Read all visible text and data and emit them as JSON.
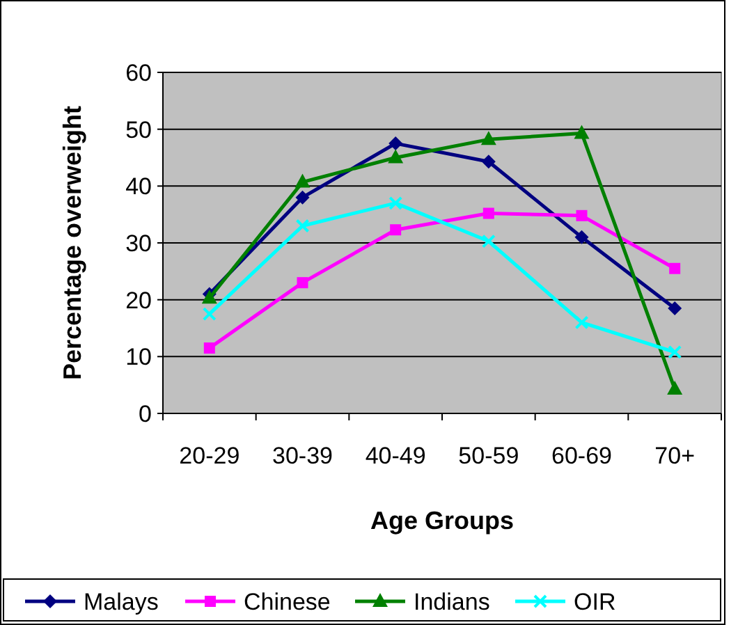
{
  "chart_data": {
    "type": "line",
    "xlabel": "Age Groups",
    "ylabel": "Percentage overweight",
    "categories": [
      "20-29",
      "30-39",
      "40-49",
      "50-59",
      "60-69",
      "70+"
    ],
    "series": [
      {
        "name": "Malays",
        "color": "#000080",
        "marker": "diamond",
        "values": [
          21,
          38,
          47.5,
          44.3,
          31,
          18.5
        ]
      },
      {
        "name": "Chinese",
        "color": "#ff00ff",
        "marker": "square",
        "values": [
          11.5,
          23,
          32.3,
          35.2,
          34.8,
          25.5
        ]
      },
      {
        "name": "Indians",
        "color": "#008000",
        "marker": "triangle",
        "values": [
          20.3,
          40.7,
          45,
          48.2,
          49.3,
          4.3
        ]
      },
      {
        "name": "OIR",
        "color": "#00ffff",
        "marker": "cross",
        "values": [
          17.5,
          33,
          37,
          30.3,
          16,
          10.8
        ]
      }
    ],
    "ylim": [
      0,
      60
    ],
    "yticks": [
      0,
      10,
      20,
      30,
      40,
      50,
      60
    ],
    "grid": "y",
    "legend": "bottom"
  }
}
